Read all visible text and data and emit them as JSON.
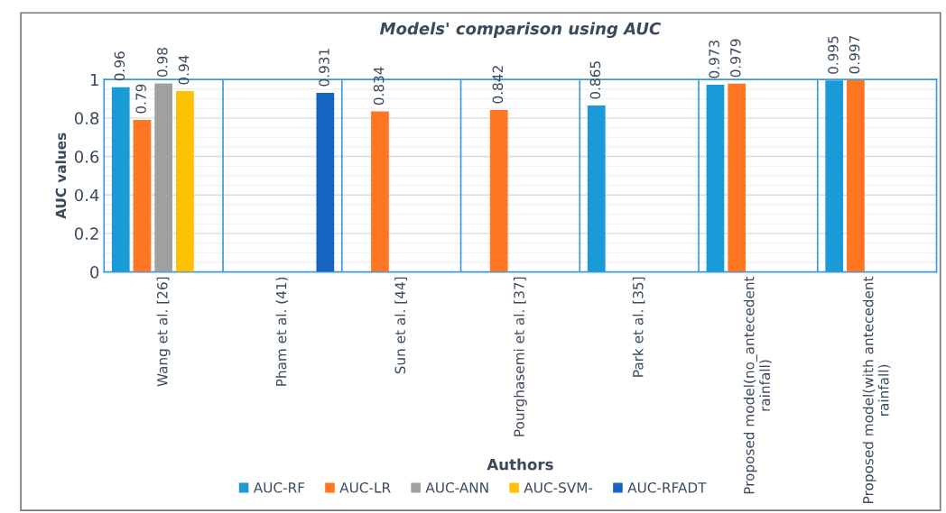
{
  "chart_data": {
    "type": "bar",
    "title": "Models' comparison using AUC",
    "xlabel": "Authors",
    "ylabel": "AUC values",
    "categories": [
      "Wang et al. [26]",
      "Pham et al. (41)",
      "Sun et al. [44]",
      "Pourghasemi et al. [37]",
      "Park et al. [35]",
      "Proposed model(no_antecedent rainfall)",
      "Proposed model(with antecedent rainfall)"
    ],
    "series": [
      {
        "name": "AUC-RF",
        "color": "#1a9ad6",
        "values": [
          0.96,
          null,
          null,
          null,
          0.865,
          0.973,
          0.995
        ]
      },
      {
        "name": "AUC-LR",
        "color": "#ff7722",
        "values": [
          0.79,
          null,
          0.834,
          0.842,
          null,
          0.979,
          0.997
        ]
      },
      {
        "name": "AUC-ANN",
        "color": "#a0a0a0",
        "values": [
          0.98,
          null,
          null,
          null,
          null,
          null,
          null
        ]
      },
      {
        "name": "AUC-SVM-",
        "color": "#ffc000",
        "values": [
          0.94,
          null,
          null,
          null,
          null,
          null,
          null
        ]
      },
      {
        "name": "AUC-RFADT",
        "color": "#1565c0",
        "values": [
          null,
          0.931,
          null,
          null,
          null,
          null,
          null
        ]
      }
    ],
    "ylim": [
      0,
      1
    ],
    "yticks": [
      0,
      0.2,
      0.4,
      0.6,
      0.8,
      1
    ],
    "grid": "y",
    "legend": "bottom",
    "data_labels": true
  }
}
